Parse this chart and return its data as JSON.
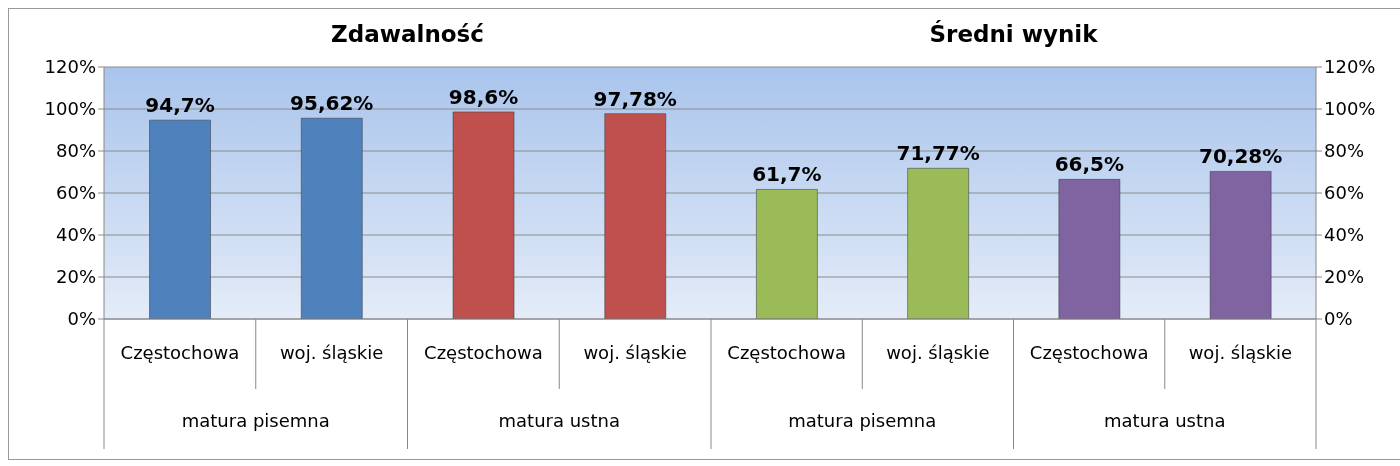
{
  "chart_data": [
    {
      "type": "bar",
      "title": "Zdawalność",
      "categories": [
        "Częstochowa",
        "woj. śląskie",
        "Częstochowa",
        "woj. śląskie"
      ],
      "values": [
        94.7,
        95.62,
        98.6,
        97.78
      ],
      "colors": [
        "#4f81bd",
        "#4f81bd",
        "#c0504d",
        "#c0504d"
      ],
      "value_labels": [
        "94,7%",
        "95,62%",
        "98,6%",
        "97,78%"
      ],
      "ylim": [
        0,
        120
      ],
      "yticks": [
        {
          "value": 0,
          "label": "0%"
        },
        {
          "value": 20,
          "label": "20%"
        },
        {
          "value": 40,
          "label": "40%"
        },
        {
          "value": 60,
          "label": "60%"
        },
        {
          "value": 80,
          "label": "80%"
        },
        {
          "value": 100,
          "label": "100%"
        },
        {
          "value": 120,
          "label": "120%"
        }
      ],
      "grid": "y",
      "annotations": [
        "matura pisemna",
        "matura ustna"
      ]
    },
    {
      "type": "bar",
      "title": "Średni wynik",
      "categories": [
        "Częstochowa",
        "woj. śląskie",
        "Częstochowa",
        "woj. śląskie"
      ],
      "values": [
        61.7,
        71.77,
        66.5,
        70.28
      ],
      "colors": [
        "#9bbb59",
        "#9bbb59",
        "#8064a2",
        "#8064a2"
      ],
      "value_labels": [
        "61,7%",
        "71,77%",
        "66,5%",
        "70,28%"
      ],
      "ylim": [
        0,
        120
      ],
      "yticks": [
        {
          "value": 0,
          "label": "0%"
        },
        {
          "value": 20,
          "label": "20%"
        },
        {
          "value": 40,
          "label": "40%"
        },
        {
          "value": 60,
          "label": "60%"
        },
        {
          "value": 80,
          "label": "80%"
        },
        {
          "value": 100,
          "label": "100%"
        },
        {
          "value": 120,
          "label": "120%"
        }
      ],
      "grid": "y",
      "annotations": [
        "matura pisemna",
        "matura ustna"
      ]
    }
  ]
}
